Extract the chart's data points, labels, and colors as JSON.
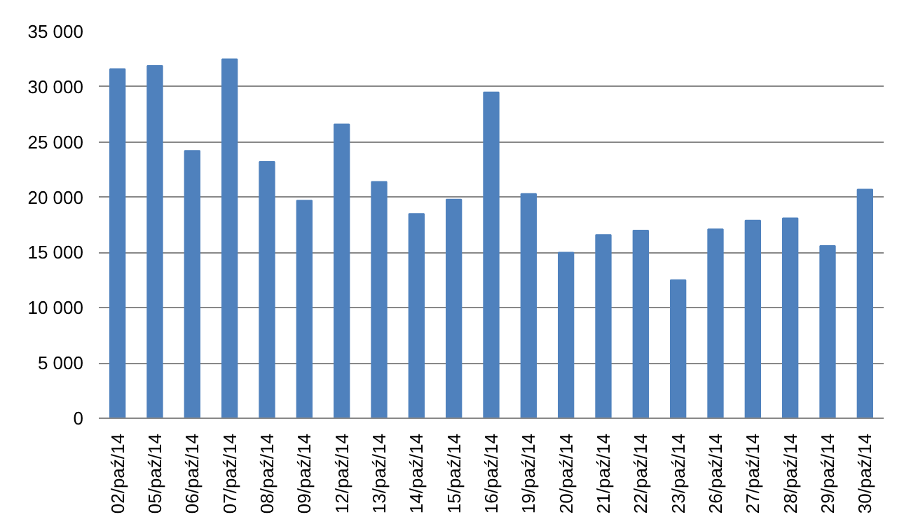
{
  "chart_data": {
    "type": "bar",
    "categories": [
      "02/paź/14",
      "05/paź/14",
      "06/paź/14",
      "07/paź/14",
      "08/paź/14",
      "09/paź/14",
      "12/paź/14",
      "13/paź/14",
      "14/paź/14",
      "15/paź/14",
      "16/paź/14",
      "19/paź/14",
      "20/paź/14",
      "21/paź/14",
      "22/paź/14",
      "23/paź/14",
      "26/paź/14",
      "27/paź/14",
      "28/paź/14",
      "29/paź/14",
      "30/paź/14"
    ],
    "values": [
      31600,
      31900,
      24200,
      32500,
      23200,
      19700,
      26600,
      21400,
      18500,
      19800,
      29500,
      20300,
      15000,
      16600,
      17000,
      12500,
      17100,
      17900,
      18100,
      15600,
      20700
    ],
    "color": "#4f81bd",
    "ylim": [
      0,
      35000
    ],
    "yticks": [
      {
        "value": 0,
        "label": "0"
      },
      {
        "value": 5000,
        "label": "5 000"
      },
      {
        "value": 10000,
        "label": "10 000"
      },
      {
        "value": 15000,
        "label": "15 000"
      },
      {
        "value": 20000,
        "label": "20 000"
      },
      {
        "value": 25000,
        "label": "25 000"
      },
      {
        "value": 30000,
        "label": "30 000"
      },
      {
        "value": 35000,
        "label": "35 000"
      }
    ],
    "grid": "y"
  }
}
